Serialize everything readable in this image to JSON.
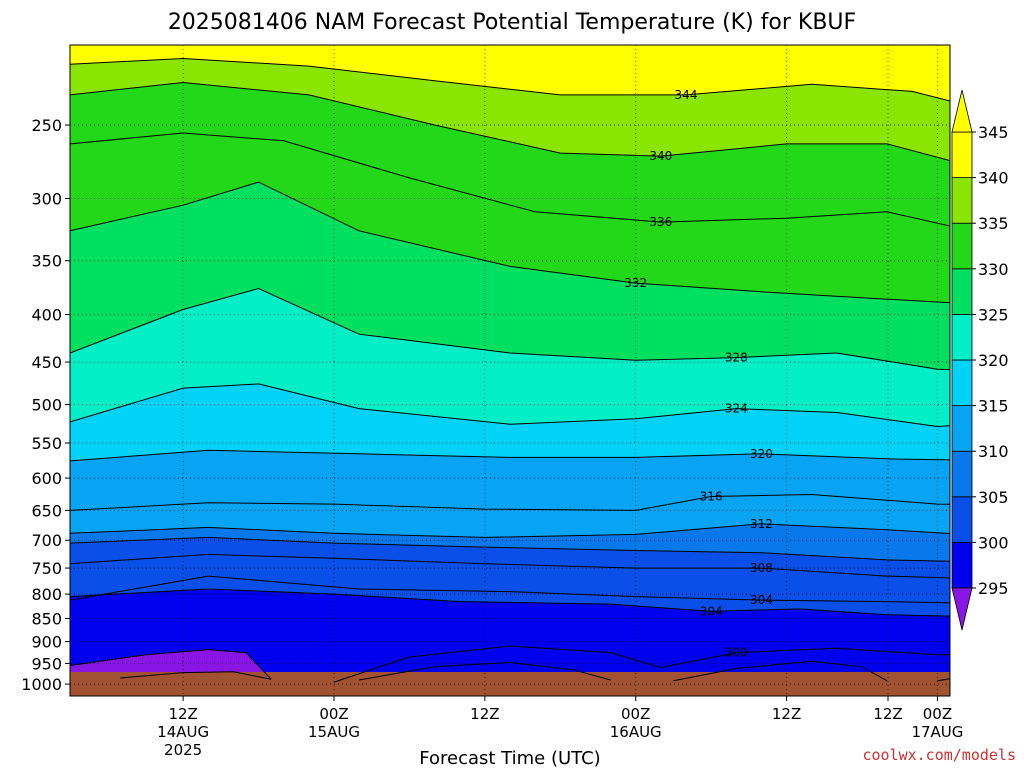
{
  "chart_data": {
    "type": "heatmap",
    "title": "2025081406 NAM Forecast Potential Temperature (K) for KBUF",
    "xlabel": "Forecast Time (UTC)",
    "ylabel": "",
    "credit": "coolwx.com/models",
    "y_axis": {
      "scale": "log",
      "units": "hPa",
      "reversed": true,
      "range": [
        1030,
        205
      ],
      "ticks": [
        "250",
        "300",
        "350",
        "400",
        "450",
        "500",
        "550",
        "600",
        "650",
        "700",
        "750",
        "800",
        "850",
        "900",
        "950",
        "1000"
      ]
    },
    "x_axis": {
      "units": "forecast hour",
      "range": [
        -3,
        67
      ],
      "ticks": [
        {
          "hour": 6,
          "line1": "12Z",
          "line2": "14AUG",
          "line3": "2025"
        },
        {
          "hour": 18,
          "line1": "00Z",
          "line2": "15AUG",
          "line3": ""
        },
        {
          "hour": 30,
          "line1": "12Z",
          "line2": "",
          "line3": ""
        },
        {
          "hour": 42,
          "line1": "00Z",
          "line2": "16AUG",
          "line3": ""
        },
        {
          "hour": 54,
          "line1": "12Z",
          "line2": "",
          "line3": ""
        },
        {
          "hour": 66,
          "line1": "00Z",
          "line2": "17AUG",
          "line3": ""
        },
        {
          "hour": 78,
          "line1": "12Z",
          "line2": "",
          "line3": ""
        }
      ]
    },
    "grid": true,
    "colorbar": {
      "placement": "right",
      "labels": [
        "295",
        "300",
        "305",
        "310",
        "315",
        "320",
        "325",
        "330",
        "335",
        "340",
        "345"
      ],
      "levels": [
        295,
        300,
        305,
        310,
        315,
        320,
        325,
        330,
        335,
        340,
        345
      ],
      "colors": [
        "#8a16e6",
        "#0000ee",
        "#0a4fe8",
        "#0878ea",
        "#06a4f2",
        "#00d2f8",
        "#00efc6",
        "#00e060",
        "#22d818",
        "#8ae600",
        "#ffff00"
      ]
    },
    "ground_color": "#a05232",
    "contour_interval": 4,
    "contours": [
      {
        "value": 296,
        "label": "",
        "points": [
          [
            1,
            985
          ],
          [
            6,
            972
          ],
          [
            10,
            970
          ],
          [
            13,
            988
          ]
        ]
      },
      {
        "value": 300,
        "label": "",
        "points": [
          [
            -3,
            955
          ],
          [
            3,
            930
          ],
          [
            8,
            918
          ],
          [
            11,
            925
          ],
          [
            13,
            988
          ]
        ]
      },
      {
        "value": 300,
        "label": "",
        "points": [
          [
            20,
            990
          ],
          [
            26,
            958
          ],
          [
            32,
            948
          ],
          [
            37,
            965
          ],
          [
            40,
            990
          ]
        ]
      },
      {
        "value": 300,
        "label": "",
        "points": [
          [
            45,
            992
          ],
          [
            50,
            962
          ],
          [
            56,
            945
          ],
          [
            60,
            958
          ],
          [
            62,
            992
          ]
        ]
      },
      {
        "value": 300,
        "label": "",
        "points": [
          [
            66,
            992
          ],
          [
            72,
            962
          ],
          [
            79,
            945
          ],
          [
            84,
            928
          ],
          [
            88,
            920
          ]
        ]
      },
      {
        "value": 302,
        "label": "300",
        "points": [
          [
            18,
            995
          ],
          [
            24,
            935
          ],
          [
            32,
            910
          ],
          [
            40,
            925
          ],
          [
            44,
            960
          ],
          [
            50,
            925
          ],
          [
            58,
            915
          ],
          [
            66,
            930
          ],
          [
            74,
            930
          ],
          [
            82,
            915
          ],
          [
            88,
            905
          ]
        ]
      },
      {
        "value": 304,
        "label": "304",
        "points": [
          [
            -3,
            805
          ],
          [
            8,
            790
          ],
          [
            18,
            800
          ],
          [
            28,
            815
          ],
          [
            40,
            820
          ],
          [
            48,
            835
          ],
          [
            55,
            830
          ],
          [
            62,
            842
          ],
          [
            72,
            848
          ],
          [
            80,
            855
          ],
          [
            88,
            848
          ]
        ]
      },
      {
        "value": 306,
        "label": "304",
        "points": [
          [
            -3,
            812
          ],
          [
            8,
            765
          ],
          [
            20,
            790
          ],
          [
            32,
            795
          ],
          [
            42,
            805
          ],
          [
            52,
            812
          ],
          [
            62,
            815
          ],
          [
            72,
            820
          ],
          [
            80,
            828
          ],
          [
            88,
            815
          ]
        ]
      },
      {
        "value": 308,
        "label": "308",
        "points": [
          [
            -3,
            742
          ],
          [
            8,
            725
          ],
          [
            18,
            732
          ],
          [
            30,
            742
          ],
          [
            42,
            750
          ],
          [
            52,
            750
          ],
          [
            62,
            765
          ],
          [
            72,
            772
          ],
          [
            80,
            780
          ],
          [
            88,
            765
          ]
        ]
      },
      {
        "value": 310,
        "label": "",
        "points": [
          [
            -3,
            705
          ],
          [
            8,
            695
          ],
          [
            18,
            705
          ],
          [
            30,
            712
          ],
          [
            42,
            718
          ],
          [
            52,
            722
          ],
          [
            62,
            735
          ],
          [
            72,
            740
          ],
          [
            80,
            745
          ],
          [
            88,
            735
          ]
        ]
      },
      {
        "value": 312,
        "label": "312",
        "points": [
          [
            -3,
            688
          ],
          [
            8,
            678
          ],
          [
            18,
            688
          ],
          [
            30,
            695
          ],
          [
            42,
            690
          ],
          [
            52,
            672
          ],
          [
            62,
            682
          ],
          [
            72,
            695
          ],
          [
            80,
            700
          ],
          [
            88,
            690
          ]
        ]
      },
      {
        "value": 316,
        "label": "316",
        "points": [
          [
            -3,
            650
          ],
          [
            8,
            638
          ],
          [
            18,
            640
          ],
          [
            30,
            648
          ],
          [
            42,
            650
          ],
          [
            48,
            628
          ],
          [
            56,
            625
          ],
          [
            66,
            640
          ],
          [
            74,
            642
          ],
          [
            82,
            648
          ],
          [
            88,
            640
          ]
        ]
      },
      {
        "value": 320,
        "label": "320",
        "points": [
          [
            -3,
            575
          ],
          [
            8,
            560
          ],
          [
            20,
            565
          ],
          [
            32,
            570
          ],
          [
            42,
            570
          ],
          [
            52,
            565
          ],
          [
            62,
            572
          ],
          [
            72,
            575
          ],
          [
            82,
            582
          ],
          [
            88,
            590
          ]
        ]
      },
      {
        "value": 324,
        "label": "324",
        "points": [
          [
            -3,
            522
          ],
          [
            6,
            480
          ],
          [
            12,
            475
          ],
          [
            20,
            505
          ],
          [
            32,
            525
          ],
          [
            42,
            518
          ],
          [
            50,
            505
          ],
          [
            58,
            510
          ],
          [
            66,
            528
          ],
          [
            74,
            520
          ],
          [
            82,
            535
          ],
          [
            88,
            548
          ]
        ]
      },
      {
        "value": 328,
        "label": "328",
        "points": [
          [
            -3,
            440
          ],
          [
            6,
            395
          ],
          [
            12,
            375
          ],
          [
            20,
            420
          ],
          [
            32,
            440
          ],
          [
            42,
            448
          ],
          [
            50,
            445
          ],
          [
            58,
            440
          ],
          [
            66,
            458
          ],
          [
            74,
            462
          ],
          [
            82,
            468
          ],
          [
            88,
            480
          ]
        ]
      },
      {
        "value": 332,
        "label": "332",
        "points": [
          [
            -3,
            325
          ],
          [
            6,
            305
          ],
          [
            12,
            288
          ],
          [
            20,
            325
          ],
          [
            32,
            355
          ],
          [
            42,
            370
          ],
          [
            52,
            378
          ],
          [
            62,
            385
          ],
          [
            72,
            392
          ],
          [
            82,
            398
          ],
          [
            88,
            412
          ]
        ]
      },
      {
        "value": 336,
        "label": "336",
        "points": [
          [
            -3,
            262
          ],
          [
            6,
            255
          ],
          [
            14,
            260
          ],
          [
            24,
            285
          ],
          [
            34,
            310
          ],
          [
            44,
            318
          ],
          [
            54,
            315
          ],
          [
            62,
            310
          ],
          [
            70,
            328
          ],
          [
            80,
            345
          ],
          [
            88,
            358
          ]
        ]
      },
      {
        "value": 340,
        "label": "340",
        "points": [
          [
            -3,
            232
          ],
          [
            6,
            225
          ],
          [
            16,
            232
          ],
          [
            26,
            250
          ],
          [
            36,
            268
          ],
          [
            44,
            270
          ],
          [
            54,
            262
          ],
          [
            62,
            262
          ],
          [
            70,
            280
          ],
          [
            80,
            295
          ],
          [
            88,
            305
          ]
        ]
      },
      {
        "value": 344,
        "label": "344",
        "points": [
          [
            -3,
            215
          ],
          [
            6,
            212
          ],
          [
            16,
            216
          ],
          [
            26,
            224
          ],
          [
            36,
            232
          ],
          [
            46,
            232
          ],
          [
            56,
            226
          ],
          [
            64,
            230
          ],
          [
            72,
            245
          ],
          [
            82,
            258
          ],
          [
            88,
            262
          ]
        ]
      }
    ]
  }
}
